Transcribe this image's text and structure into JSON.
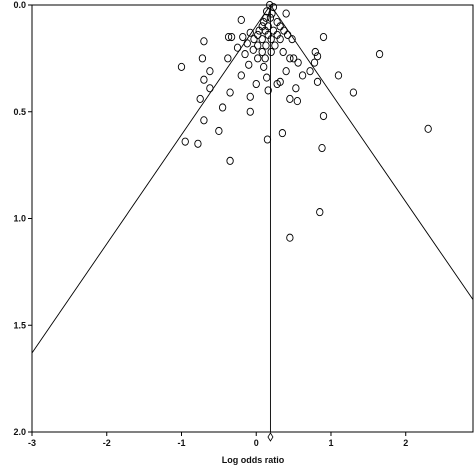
{
  "chart_data": {
    "type": "scatter",
    "title": "",
    "xlabel": "Log odds ratio",
    "ylabel": "",
    "xlim": [
      -3,
      2.9
    ],
    "ylim": [
      2.0,
      0.0
    ],
    "y_inverted": true,
    "x_ticks": [
      -3,
      -2,
      -1,
      0,
      1,
      2
    ],
    "y_ticks": [
      0.0,
      0.5,
      1.0,
      1.5,
      2.0
    ],
    "x_tick_labels": [
      "-3",
      "-2",
      "-1",
      "0",
      "1",
      "2"
    ],
    "y_tick_labels": [
      "0.0",
      "0.5",
      "1.0",
      "1.5",
      "2.0"
    ],
    "pooled_estimate": 0.19,
    "funnel_limits": {
      "left": [
        {
          "x": 0.19,
          "y": 0.0
        },
        {
          "x": -3.0,
          "y": 1.63
        }
      ],
      "right": [
        {
          "x": 0.19,
          "y": 0.0
        },
        {
          "x": 2.9,
          "y": 1.38
        }
      ]
    },
    "pooled_marker_y": 2.0,
    "grid": false,
    "legend": "none",
    "points": [
      {
        "x": 0.18,
        "y": 0.0
      },
      {
        "x": 0.23,
        "y": 0.01
      },
      {
        "x": 0.14,
        "y": 0.03
      },
      {
        "x": 0.21,
        "y": 0.04
      },
      {
        "x": 0.4,
        "y": 0.04
      },
      {
        "x": 0.13,
        "y": 0.06
      },
      {
        "x": 0.19,
        "y": 0.06
      },
      {
        "x": -0.2,
        "y": 0.07
      },
      {
        "x": 0.1,
        "y": 0.08
      },
      {
        "x": 0.28,
        "y": 0.08
      },
      {
        "x": 0.08,
        "y": 0.1
      },
      {
        "x": 0.16,
        "y": 0.1
      },
      {
        "x": 0.32,
        "y": 0.1
      },
      {
        "x": 0.04,
        "y": 0.12
      },
      {
        "x": 0.12,
        "y": 0.12
      },
      {
        "x": 0.23,
        "y": 0.12
      },
      {
        "x": 0.37,
        "y": 0.12
      },
      {
        "x": -0.08,
        "y": 0.13
      },
      {
        "x": 0.02,
        "y": 0.14
      },
      {
        "x": 0.16,
        "y": 0.14
      },
      {
        "x": 0.28,
        "y": 0.14
      },
      {
        "x": 0.42,
        "y": 0.14
      },
      {
        "x": -0.37,
        "y": 0.15
      },
      {
        "x": -0.33,
        "y": 0.15
      },
      {
        "x": -0.18,
        "y": 0.15
      },
      {
        "x": -0.03,
        "y": 0.16
      },
      {
        "x": 0.08,
        "y": 0.16
      },
      {
        "x": 0.2,
        "y": 0.16
      },
      {
        "x": 0.32,
        "y": 0.16
      },
      {
        "x": 0.48,
        "y": 0.16
      },
      {
        "x": 0.9,
        "y": 0.15
      },
      {
        "x": -0.7,
        "y": 0.17
      },
      {
        "x": -0.12,
        "y": 0.18
      },
      {
        "x": 0.02,
        "y": 0.19
      },
      {
        "x": 0.13,
        "y": 0.19
      },
      {
        "x": 0.25,
        "y": 0.19
      },
      {
        "x": -0.25,
        "y": 0.2
      },
      {
        "x": -0.04,
        "y": 0.21
      },
      {
        "x": 0.08,
        "y": 0.22
      },
      {
        "x": 0.2,
        "y": 0.22
      },
      {
        "x": 0.36,
        "y": 0.22
      },
      {
        "x": 0.79,
        "y": 0.22
      },
      {
        "x": -0.15,
        "y": 0.23
      },
      {
        "x": 0.82,
        "y": 0.24
      },
      {
        "x": 1.65,
        "y": 0.23
      },
      {
        "x": -0.72,
        "y": 0.25
      },
      {
        "x": -0.38,
        "y": 0.25
      },
      {
        "x": 0.02,
        "y": 0.25
      },
      {
        "x": 0.12,
        "y": 0.25
      },
      {
        "x": 0.45,
        "y": 0.25
      },
      {
        "x": 0.5,
        "y": 0.25
      },
      {
        "x": 0.56,
        "y": 0.27
      },
      {
        "x": 0.78,
        "y": 0.27
      },
      {
        "x": -0.1,
        "y": 0.28
      },
      {
        "x": 0.1,
        "y": 0.29
      },
      {
        "x": -0.62,
        "y": 0.31
      },
      {
        "x": -1.0,
        "y": 0.29
      },
      {
        "x": 0.4,
        "y": 0.31
      },
      {
        "x": 0.72,
        "y": 0.31
      },
      {
        "x": -0.2,
        "y": 0.33
      },
      {
        "x": 0.62,
        "y": 0.33
      },
      {
        "x": 1.1,
        "y": 0.33
      },
      {
        "x": 0.14,
        "y": 0.34
      },
      {
        "x": 0.32,
        "y": 0.36
      },
      {
        "x": -0.7,
        "y": 0.35
      },
      {
        "x": 0.82,
        "y": 0.36
      },
      {
        "x": 0.0,
        "y": 0.37
      },
      {
        "x": 0.28,
        "y": 0.37
      },
      {
        "x": -0.62,
        "y": 0.39
      },
      {
        "x": 0.53,
        "y": 0.39
      },
      {
        "x": 0.16,
        "y": 0.4
      },
      {
        "x": -0.35,
        "y": 0.41
      },
      {
        "x": 1.3,
        "y": 0.41
      },
      {
        "x": -0.08,
        "y": 0.43
      },
      {
        "x": -0.75,
        "y": 0.44
      },
      {
        "x": 0.45,
        "y": 0.44
      },
      {
        "x": 0.55,
        "y": 0.45
      },
      {
        "x": -0.45,
        "y": 0.48
      },
      {
        "x": -0.08,
        "y": 0.5
      },
      {
        "x": 0.9,
        "y": 0.52
      },
      {
        "x": -0.7,
        "y": 0.54
      },
      {
        "x": 2.3,
        "y": 0.58
      },
      {
        "x": -0.5,
        "y": 0.59
      },
      {
        "x": 0.35,
        "y": 0.6
      },
      {
        "x": 0.15,
        "y": 0.63
      },
      {
        "x": -0.95,
        "y": 0.64
      },
      {
        "x": -0.78,
        "y": 0.65
      },
      {
        "x": 0.88,
        "y": 0.67
      },
      {
        "x": -0.35,
        "y": 0.73
      },
      {
        "x": 0.85,
        "y": 0.97
      },
      {
        "x": 0.45,
        "y": 1.09
      }
    ]
  }
}
